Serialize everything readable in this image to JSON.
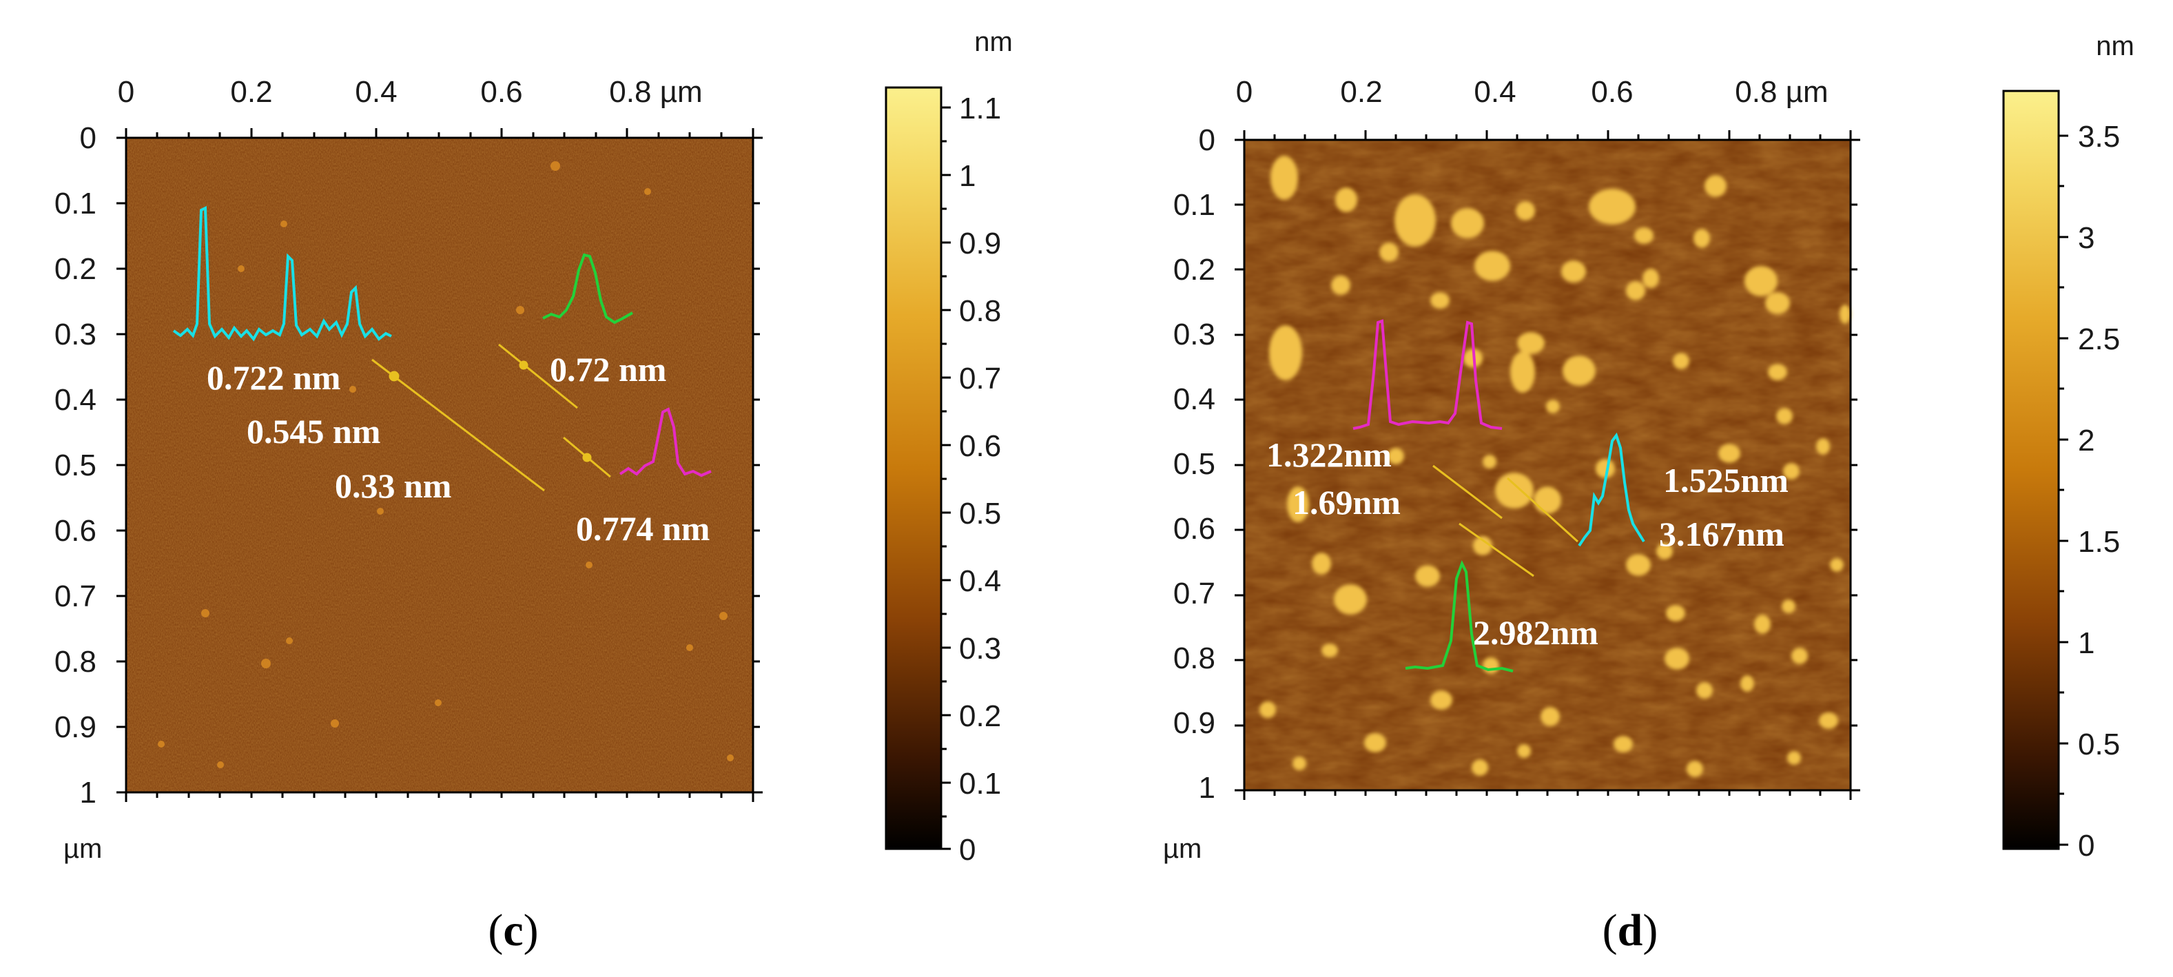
{
  "panels": [
    {
      "caption_letter": "c",
      "x_axis": {
        "ticks": [
          "0",
          "0.2",
          "0.4",
          "0.6",
          "0.8 µm"
        ]
      },
      "y_axis": {
        "ticks": [
          "0",
          "0.1",
          "0.2",
          "0.3",
          "0.4",
          "0.5",
          "0.6",
          "0.7",
          "0.8",
          "0.9",
          "1"
        ],
        "unit": "µm"
      },
      "colorbar": {
        "unit": "nm",
        "ticks": [
          "1.1",
          "1",
          "0.9",
          "0.8",
          "0.7",
          "0.6",
          "0.5",
          "0.4",
          "0.3",
          "0.2",
          "0.1",
          "0"
        ]
      },
      "annotations": [
        "0.722 nm",
        "0.545 nm",
        "0.33 nm",
        "0.72 nm",
        "0.774 nm"
      ],
      "profile_colors": {
        "cyan": "#19e0e6",
        "green": "#22d13a",
        "magenta": "#e52bc4"
      }
    },
    {
      "caption_letter": "d",
      "x_axis": {
        "ticks": [
          "0",
          "0.2",
          "0.4",
          "0.6",
          "0.8 µm"
        ]
      },
      "y_axis": {
        "ticks": [
          "0",
          "0.1",
          "0.2",
          "0.3",
          "0.4",
          "0.5",
          "0.6",
          "0.7",
          "0.8",
          "0.9",
          "1"
        ],
        "unit": "µm"
      },
      "colorbar": {
        "unit": "nm",
        "ticks": [
          "3.5",
          "3",
          "2.5",
          "2",
          "1.5",
          "1",
          "0.5",
          "0"
        ]
      },
      "annotations": [
        "1.322nm",
        "1.69nm",
        "1.525nm",
        "3.167nm",
        "2.982nm"
      ],
      "profile_colors": {
        "cyan": "#19e0e6",
        "green": "#22d13a",
        "magenta": "#e52bc4"
      }
    }
  ],
  "colors": {
    "afm_base": "#7a3a0a",
    "particle": "#f5c84a",
    "scan_line": "#e8c020"
  }
}
